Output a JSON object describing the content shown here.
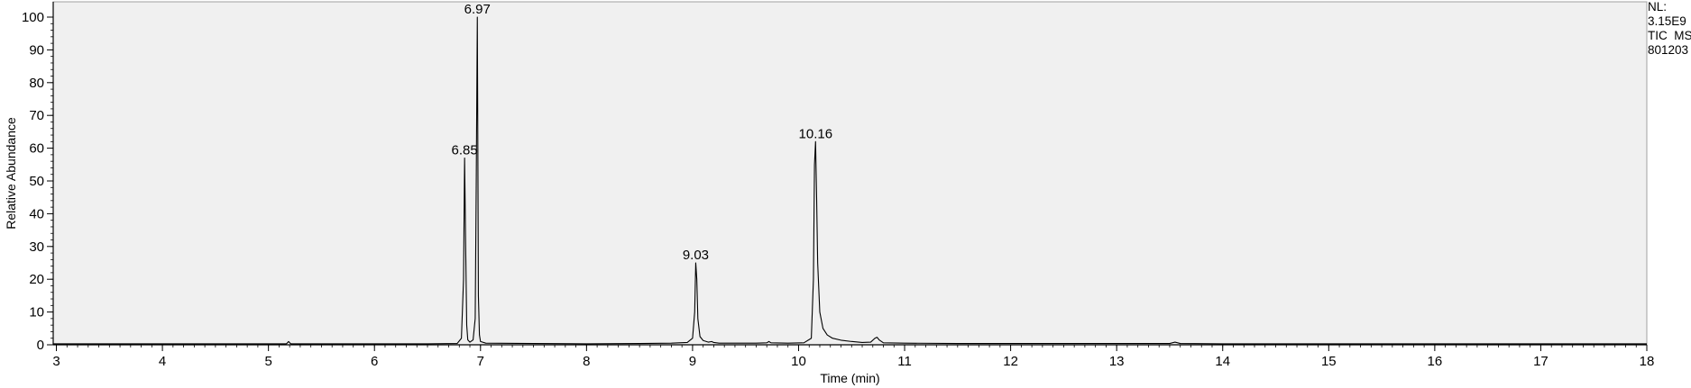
{
  "chart_data": {
    "type": "line",
    "title": "",
    "xlabel": "Time (min)",
    "ylabel": "Relative Abundance",
    "xlim": [
      2.97,
      18.0
    ],
    "ylim": [
      0,
      100
    ],
    "x_ticks": [
      3,
      4,
      5,
      6,
      7,
      8,
      9,
      10,
      11,
      12,
      13,
      14,
      15,
      16,
      17,
      18
    ],
    "y_ticks": [
      0,
      10,
      20,
      30,
      40,
      50,
      60,
      70,
      80,
      90,
      100
    ],
    "grid": false,
    "legend": "none",
    "info_lines": [
      "NL:",
      "3.15E9",
      "TIC  MS",
      "801203"
    ],
    "colors": {
      "trace": "#000000",
      "plot_background": "#f0f0f0",
      "axis": "#000000"
    },
    "peak_labels": [
      {
        "label": "6.85",
        "x": 6.85,
        "y": 57
      },
      {
        "label": "6.97",
        "x": 6.97,
        "y": 100
      },
      {
        "label": "9.03",
        "x": 9.03,
        "y": 25
      },
      {
        "label": "10.16",
        "x": 10.16,
        "y": 62
      }
    ],
    "series": [
      {
        "x": [
          2.97,
          3.5,
          4.0,
          4.5,
          5.0,
          5.17,
          5.19,
          5.21,
          5.5,
          6.0,
          6.5,
          6.78,
          6.82,
          6.84,
          6.85,
          6.86,
          6.87,
          6.88,
          6.9,
          6.93,
          6.95,
          6.96,
          6.97,
          6.975,
          6.98,
          6.99,
          7.0,
          7.05,
          7.5,
          8.0,
          8.5,
          8.8,
          8.95,
          9.0,
          9.02,
          9.03,
          9.04,
          9.05,
          9.07,
          9.1,
          9.15,
          9.18,
          9.2,
          9.25,
          9.4,
          9.6,
          9.7,
          9.72,
          9.74,
          9.9,
          10.05,
          10.12,
          10.14,
          10.15,
          10.16,
          10.17,
          10.18,
          10.2,
          10.23,
          10.27,
          10.32,
          10.4,
          10.5,
          10.6,
          10.68,
          10.72,
          10.74,
          10.76,
          10.8,
          11.0,
          11.5,
          12.0,
          13.0,
          13.5,
          13.55,
          13.6,
          14.0,
          15.0,
          16.0,
          17.0,
          18.0
        ],
        "y": [
          0.3,
          0.3,
          0.3,
          0.3,
          0.3,
          0.3,
          1.0,
          0.3,
          0.3,
          0.3,
          0.3,
          0.4,
          2.0,
          20.0,
          57.0,
          30.0,
          6.0,
          1.5,
          0.8,
          1.5,
          8.0,
          50.0,
          100.0,
          60.0,
          15.0,
          3.0,
          1.0,
          0.5,
          0.4,
          0.3,
          0.4,
          0.5,
          0.7,
          2.0,
          10.0,
          25.0,
          20.0,
          8.0,
          2.5,
          1.3,
          0.8,
          1.0,
          0.7,
          0.5,
          0.5,
          0.5,
          0.6,
          1.0,
          0.6,
          0.5,
          0.6,
          2.0,
          20.0,
          55.0,
          62.0,
          45.0,
          25.0,
          10.0,
          5.0,
          3.0,
          2.0,
          1.4,
          1.0,
          0.7,
          0.8,
          2.0,
          2.3,
          1.5,
          0.6,
          0.5,
          0.4,
          0.4,
          0.4,
          0.4,
          0.8,
          0.4,
          0.3,
          0.3,
          0.3,
          0.3,
          0.3
        ]
      }
    ]
  }
}
